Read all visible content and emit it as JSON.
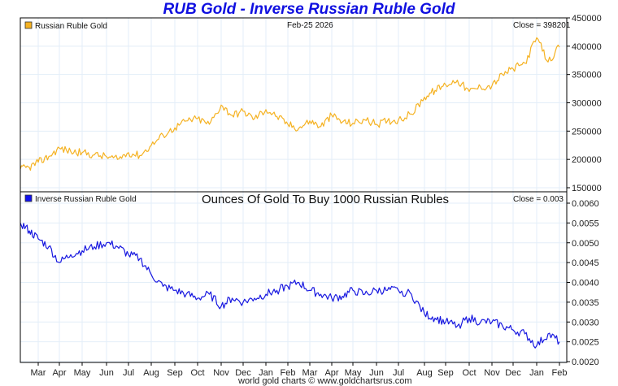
{
  "chart_data": [
    {
      "type": "line",
      "title": "RUB Gold - Inverse Russian Ruble Gold",
      "panel": "top",
      "legend": "Russian Ruble Gold",
      "date_label": "Feb-25  2026",
      "close_label": "Close = 398201",
      "color": "#f5b222",
      "ylim": [
        150000,
        450000
      ],
      "yticks": [
        "450000",
        "400000",
        "350000",
        "300000",
        "250000",
        "200000",
        "150000"
      ],
      "ytick_values": [
        450000,
        400000,
        350000,
        300000,
        250000,
        200000,
        150000
      ],
      "x": [
        0,
        0.5,
        1,
        1.5,
        2,
        2.5,
        3,
        3.5,
        4,
        4.5,
        5,
        5.5,
        6,
        6.5,
        7,
        7.5,
        8,
        8.5,
        9,
        9.5,
        10,
        10.5,
        11,
        11.5,
        12,
        12.5,
        13,
        13.5,
        14,
        14.5,
        15,
        15.5,
        16,
        16.5,
        17,
        17.5,
        18,
        18.5,
        19,
        19.5,
        20,
        20.5,
        21,
        21.5,
        22,
        22.5,
        23,
        23.5,
        24
      ],
      "values": [
        183000,
        186000,
        195000,
        205000,
        220000,
        214000,
        212000,
        208000,
        205000,
        200000,
        212000,
        207000,
        225000,
        243000,
        256000,
        268000,
        272000,
        262000,
        296000,
        278000,
        285000,
        272000,
        288000,
        276000,
        262000,
        255000,
        268000,
        258000,
        278000,
        266000,
        264000,
        270000,
        262000,
        268000,
        270000,
        280000,
        310000,
        322000,
        332000,
        340000,
        320000,
        328000,
        330000,
        350000,
        360000,
        370000,
        415000,
        372000,
        398201
      ]
    },
    {
      "type": "line",
      "panel": "bottom",
      "legend": "Inverse Russian Ruble Gold",
      "subtitle": "Ounces Of Gold To Buy 1000 Russian Rubles",
      "close_label": "Close = 0.003",
      "color": "#1818e0",
      "ylim": [
        0.002,
        0.0062
      ],
      "yticks": [
        "0.0060",
        "0.0055",
        "0.0050",
        "0.0045",
        "0.0040",
        "0.0035",
        "0.0030",
        "0.0025",
        "0.0020"
      ],
      "ytick_values": [
        0.006,
        0.0055,
        0.005,
        0.0045,
        0.004,
        0.0035,
        0.003,
        0.0025,
        0.002
      ],
      "x": [
        0,
        0.5,
        1,
        1.5,
        2,
        2.5,
        3,
        3.5,
        4,
        4.5,
        5,
        5.5,
        6,
        6.5,
        7,
        7.5,
        8,
        8.5,
        9,
        9.5,
        10,
        10.5,
        11,
        11.5,
        12,
        12.5,
        13,
        13.5,
        14,
        14.5,
        15,
        15.5,
        16,
        16.5,
        17,
        17.5,
        18,
        18.5,
        19,
        19.5,
        20,
        20.5,
        21,
        21.5,
        22,
        22.5,
        23,
        23.5,
        24
      ],
      "values": [
        0.0055,
        0.0053,
        0.0051,
        0.0049,
        0.0045,
        0.0047,
        0.0048,
        0.0049,
        0.005,
        0.0049,
        0.0047,
        0.0046,
        0.0042,
        0.0039,
        0.0038,
        0.0037,
        0.0036,
        0.0037,
        0.0034,
        0.0036,
        0.0035,
        0.0036,
        0.0037,
        0.0038,
        0.0039,
        0.004,
        0.0038,
        0.0037,
        0.0036,
        0.00365,
        0.0038,
        0.0037,
        0.0038,
        0.0038,
        0.0038,
        0.0037,
        0.0032,
        0.0031,
        0.003,
        0.0029,
        0.0031,
        0.003,
        0.003,
        0.0029,
        0.0028,
        0.0027,
        0.0024,
        0.0027,
        0.0025
      ]
    }
  ],
  "x_axis": {
    "months": [
      "Mar",
      "Apr",
      "May",
      "Jun",
      "Jul",
      "Aug",
      "Sep",
      "Oct",
      "Nov",
      "Dec",
      "Jan",
      "Feb",
      "Mar",
      "Apr",
      "May",
      "Jun",
      "Jul",
      "Aug",
      "Sep",
      "Oct",
      "Nov",
      "Dec",
      "Jan",
      "Feb"
    ]
  },
  "header": {
    "title": "RUB Gold - Inverse Russian Ruble Gold"
  },
  "footer": {
    "credit": "world gold charts © www.goldchartsrus.com"
  },
  "colors": {
    "title": "#1010e0",
    "gold_line": "#f5b222",
    "inverse_line": "#1818e0",
    "grid": "#e3eef8"
  }
}
